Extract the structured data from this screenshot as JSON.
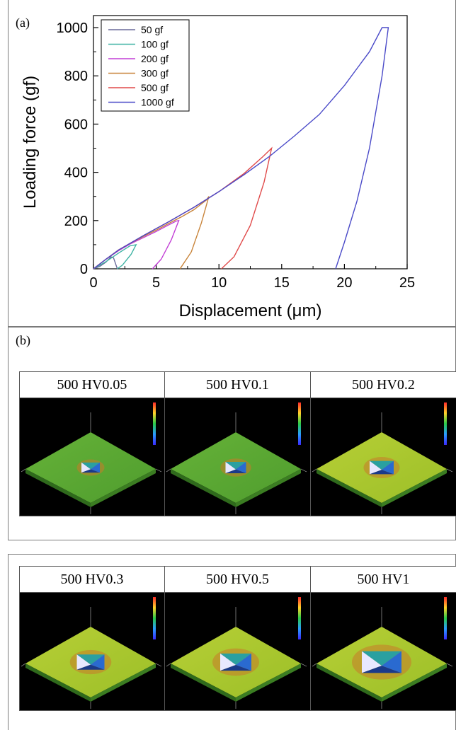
{
  "panel_a": {
    "label": "(a)"
  },
  "panel_b": {
    "label": "(b)"
  },
  "chart_data": {
    "type": "line",
    "title": "",
    "xlabel": "Displacement (μm)",
    "ylabel": "Loading force (gf)",
    "xlim": [
      0,
      25
    ],
    "ylim": [
      0,
      1050
    ],
    "xticks": [
      0,
      5,
      10,
      15,
      20,
      25
    ],
    "yticks": [
      0,
      200,
      400,
      600,
      800,
      1000
    ],
    "grid": false,
    "legend_position": "top-left",
    "series": [
      {
        "name": "50 gf",
        "color": "#6a6a9a",
        "x": [
          0,
          0.5,
          1.0,
          1.4,
          1.6,
          1.9
        ],
        "y": [
          0,
          10,
          28,
          50,
          45,
          0
        ]
      },
      {
        "name": "100 gf",
        "color": "#3fb3a4",
        "x": [
          0,
          1.0,
          2.0,
          2.9,
          3.4,
          3.0,
          2.3,
          1.9
        ],
        "y": [
          0,
          30,
          65,
          95,
          100,
          60,
          15,
          0
        ]
      },
      {
        "name": "200 gf",
        "color": "#c23fd6",
        "x": [
          0,
          1.0,
          2.0,
          3.0,
          4.0,
          5.0,
          6.0,
          6.6,
          6.8,
          6.2,
          5.4,
          4.7
        ],
        "y": [
          0,
          40,
          75,
          105,
          130,
          155,
          182,
          198,
          200,
          120,
          40,
          0
        ]
      },
      {
        "name": "300 gf",
        "color": "#c8843a",
        "x": [
          0,
          1.0,
          2.0,
          3.0,
          4.0,
          5.0,
          6.0,
          7.0,
          8.0,
          9.0,
          9.2,
          8.6,
          7.8,
          6.9
        ],
        "y": [
          0,
          40,
          78,
          108,
          135,
          160,
          188,
          215,
          245,
          285,
          300,
          190,
          70,
          0
        ]
      },
      {
        "name": "500 gf",
        "color": "#e04a4a",
        "x": [
          0,
          1.0,
          2.0,
          4.0,
          6.0,
          8.0,
          10.0,
          12.0,
          13.5,
          14.2,
          13.6,
          12.5,
          11.2,
          10.2
        ],
        "y": [
          0,
          40,
          78,
          138,
          195,
          255,
          320,
          395,
          465,
          500,
          360,
          180,
          50,
          0
        ]
      },
      {
        "name": "1000 gf",
        "color": "#4a4ac8",
        "x": [
          0,
          1.0,
          2.0,
          4.0,
          6.0,
          8.0,
          10.0,
          12.0,
          14.0,
          16.0,
          18.0,
          20.0,
          22.0,
          23.0,
          23.5,
          23.0,
          22.0,
          21.0,
          20.0,
          19.3
        ],
        "y": [
          0,
          40,
          78,
          138,
          195,
          255,
          320,
          390,
          465,
          550,
          640,
          760,
          900,
          1000,
          1000,
          800,
          500,
          280,
          110,
          0
        ]
      }
    ]
  },
  "micrographs": [
    {
      "title": "500  HV0.05",
      "indent": 0.06
    },
    {
      "title": "500  HV0.1",
      "indent": 0.09
    },
    {
      "title": "500  HV0.2",
      "indent": 0.14
    },
    {
      "title": "500  HV0.3",
      "indent": 0.19
    },
    {
      "title": "500  HV0.5",
      "indent": 0.24
    },
    {
      "title": "500  HV1",
      "indent": 0.36
    }
  ]
}
